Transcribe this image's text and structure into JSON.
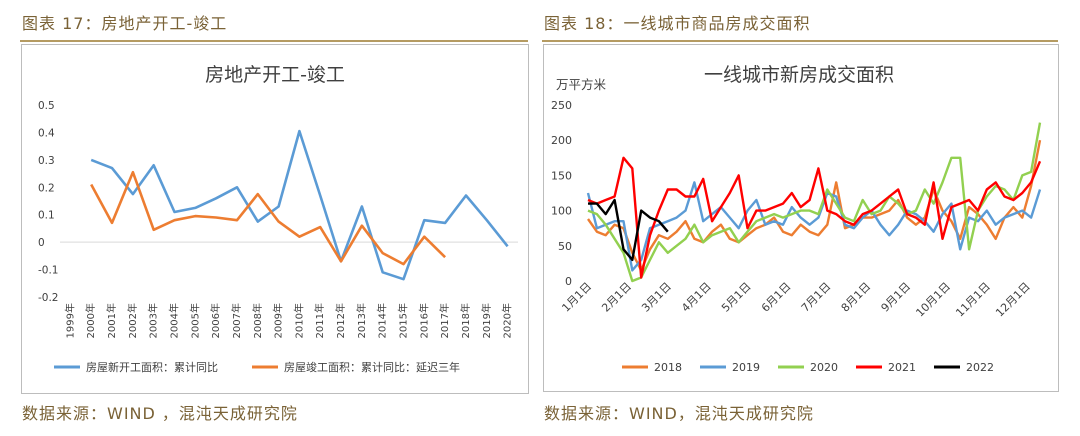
{
  "left": {
    "caption": "图表 17：房地产开工-竣工",
    "source": "数据来源：WIND ，混沌天成研究院"
  },
  "right": {
    "caption": "图表 18：一线城市商品房成交面积",
    "source": "数据来源：WIND，混沌天成研究院"
  },
  "colors": {
    "blue": "#5b9bd5",
    "orange": "#ed7d31",
    "green": "#92d050",
    "red": "#ff0000",
    "black": "#000000",
    "caption": "#7a6236",
    "rule": "#b59b62"
  },
  "chart_data": [
    {
      "type": "line",
      "title": "房地产开工-竣工",
      "categories": [
        "1999年",
        "2000年",
        "2001年",
        "2002年",
        "2003年",
        "2004年",
        "2005年",
        "2006年",
        "2007年",
        "2008年",
        "2009年",
        "2010年",
        "2011年",
        "2012年",
        "2013年",
        "2014年",
        "2015年",
        "2016年",
        "2017年",
        "2018年",
        "2019年",
        "2020年"
      ],
      "ylim": [
        -0.2,
        0.5
      ],
      "yticks": [
        -0.2,
        -0.1,
        0,
        0.1,
        0.2,
        0.3,
        0.4,
        0.5
      ],
      "ytick_labels": [
        "-0.2",
        "-0.1",
        "0",
        "0.1",
        "0.2",
        "0.3",
        "0.4",
        "0.5"
      ],
      "legend_position": "bottom",
      "series": [
        {
          "name": "房屋新开工面积：累计同比",
          "color": "#5b9bd5",
          "values": [
            null,
            0.3,
            0.27,
            0.175,
            0.28,
            0.11,
            0.125,
            0.16,
            0.2,
            0.075,
            0.13,
            0.405,
            0.17,
            -0.07,
            0.13,
            -0.11,
            -0.135,
            0.08,
            0.07,
            0.17,
            0.08,
            -0.015
          ]
        },
        {
          "name": "房屋竣工面积：累计同比：延迟三年",
          "color": "#ed7d31",
          "values": [
            null,
            0.21,
            0.07,
            0.255,
            0.045,
            0.08,
            0.095,
            0.09,
            0.08,
            0.175,
            0.075,
            0.02,
            0.055,
            -0.07,
            0.06,
            -0.04,
            -0.08,
            0.02,
            -0.055,
            null,
            null,
            null
          ]
        }
      ]
    },
    {
      "type": "line",
      "title": "一线城市新房成交面积",
      "unit_label": "万平方米",
      "ylim": [
        0,
        250
      ],
      "yticks": [
        0,
        50,
        100,
        150,
        200,
        250
      ],
      "ytick_labels": [
        "0",
        "50",
        "100",
        "150",
        "200",
        "250"
      ],
      "x_count": 52,
      "xtick_labels": [
        "1月1日",
        "2月1日",
        "3月1日",
        "4月1日",
        "5月1日",
        "6月1日",
        "7月1日",
        "8月1日",
        "9月1日",
        "10月1日",
        "11月1日",
        "12月1日"
      ],
      "xtick_index": [
        0,
        4.5,
        9,
        13.5,
        18,
        22.5,
        27,
        31.5,
        36,
        40.5,
        45,
        49.5
      ],
      "legend_position": "bottom",
      "series": [
        {
          "name": "2018",
          "color": "#ed7d31",
          "values": [
            88,
            70,
            65,
            80,
            75,
            40,
            15,
            45,
            65,
            60,
            70,
            85,
            60,
            55,
            70,
            80,
            60,
            55,
            65,
            75,
            80,
            90,
            70,
            65,
            80,
            70,
            65,
            80,
            140,
            75,
            80,
            90,
            90,
            95,
            100,
            115,
            90,
            80,
            90,
            130,
            100,
            85,
            60,
            105,
            95,
            80,
            60,
            90,
            105,
            90,
            135,
            200
          ]
        },
        {
          "name": "2019",
          "color": "#5b9bd5",
          "values": [
            125,
            75,
            80,
            85,
            85,
            15,
            30,
            75,
            80,
            85,
            90,
            100,
            140,
            85,
            95,
            105,
            90,
            75,
            100,
            115,
            80,
            85,
            80,
            105,
            90,
            80,
            90,
            125,
            120,
            80,
            75,
            90,
            100,
            80,
            65,
            80,
            100,
            95,
            85,
            70,
            95,
            110,
            45,
            90,
            85,
            100,
            80,
            90,
            95,
            100,
            90,
            130
          ]
        },
        {
          "name": "2020",
          "color": "#92d050",
          "values": [
            100,
            95,
            80,
            60,
            40,
            0,
            5,
            30,
            55,
            40,
            50,
            60,
            80,
            55,
            65,
            70,
            75,
            55,
            70,
            85,
            90,
            95,
            90,
            95,
            100,
            100,
            95,
            130,
            110,
            90,
            85,
            115,
            95,
            100,
            120,
            110,
            95,
            100,
            130,
            110,
            140,
            175,
            175,
            45,
            100,
            120,
            135,
            130,
            115,
            150,
            155,
            225
          ]
        },
        {
          "name": "2021",
          "color": "#ff0000",
          "values": [
            115,
            110,
            115,
            120,
            175,
            160,
            5,
            65,
            100,
            130,
            130,
            120,
            120,
            145,
            85,
            105,
            125,
            150,
            75,
            100,
            100,
            105,
            110,
            125,
            105,
            115,
            160,
            100,
            95,
            85,
            80,
            95,
            100,
            110,
            120,
            130,
            95,
            90,
            80,
            140,
            60,
            105,
            110,
            115,
            100,
            130,
            140,
            120,
            115,
            125,
            140,
            170
          ]
        },
        {
          "name": "2022",
          "color": "#000000",
          "values": [
            110,
            110,
            95,
            115,
            45,
            30,
            100,
            90,
            85,
            70,
            null,
            null,
            null,
            null,
            null,
            null,
            null,
            null,
            null,
            null,
            null,
            null,
            null,
            null,
            null,
            null,
            null,
            null,
            null,
            null,
            null,
            null,
            null,
            null,
            null,
            null,
            null,
            null,
            null,
            null,
            null,
            null,
            null,
            null,
            null,
            null,
            null,
            null,
            null,
            null,
            null,
            null
          ]
        }
      ]
    }
  ]
}
